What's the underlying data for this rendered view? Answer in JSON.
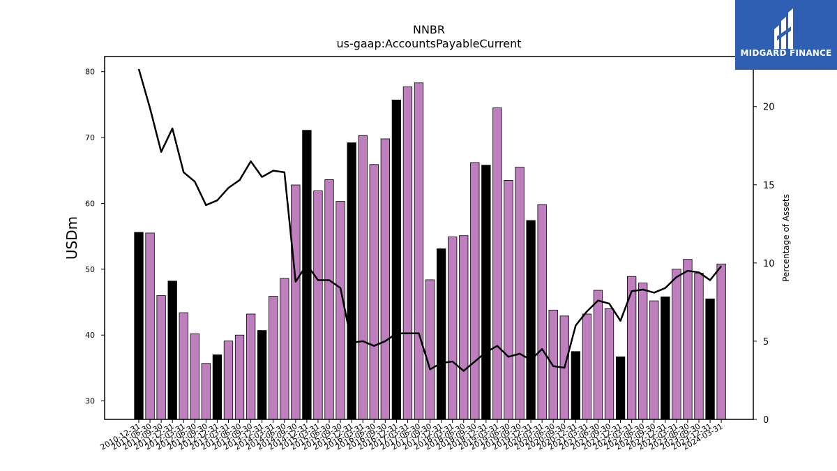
{
  "chart_data": {
    "type": "bar",
    "title": "NNBR",
    "subtitle": "us-gaap:AccountsPayableCurrent",
    "ylabel": "USDm",
    "y2label": "Percentage of Assets",
    "ylim": [
      27.2,
      82.3
    ],
    "y2lim": [
      0,
      23.2
    ],
    "yticks": [
      30,
      40,
      50,
      60,
      70,
      80
    ],
    "y2ticks": [
      0,
      5,
      10,
      15,
      20
    ],
    "grid": false,
    "categories": [
      "2010-12-31",
      "2011-06-30",
      "2011-09-30",
      "2011-12-31",
      "2012-03-31",
      "2012-06-30",
      "2012-09-30",
      "2012-12-31",
      "2013-03-31",
      "2013-06-30",
      "2013-09-30",
      "2013-12-31",
      "2014-03-31",
      "2014-06-30",
      "2014-09-30",
      "2014-12-31",
      "2015-03-31",
      "2015-06-30",
      "2015-09-30",
      "2015-12-31",
      "2016-03-31",
      "2016-06-30",
      "2016-09-30",
      "2016-12-31",
      "2017-03-31",
      "2017-06-30",
      "2017-09-30",
      "2017-12-31",
      "2018-03-31",
      "2018-06-30",
      "2018-09-30",
      "2018-12-31",
      "2019-03-31",
      "2019-06-30",
      "2019-09-30",
      "2019-12-31",
      "2020-03-31",
      "2020-06-30",
      "2020-09-30",
      "2020-12-31",
      "2021-03-31",
      "2021-06-30",
      "2021-09-30",
      "2021-12-31",
      "2022-03-31",
      "2022-06-30",
      "2022-09-30",
      "2022-12-31",
      "2023-03-31",
      "2023-06-30",
      "2023-09-30",
      "2023-12-31",
      "2024-03-31"
    ],
    "series": [
      {
        "kind": "bar",
        "values": [
          55.6,
          55.5,
          46.0,
          48.2,
          43.4,
          40.2,
          35.7,
          37.0,
          39.1,
          40.0,
          43.2,
          40.7,
          45.9,
          48.6,
          62.8,
          71.1,
          61.9,
          63.6,
          60.3,
          69.2,
          70.3,
          65.9,
          69.8,
          75.7,
          77.7,
          78.3,
          48.4,
          53.1,
          54.9,
          55.1,
          66.2,
          65.8,
          74.5,
          63.5,
          65.5,
          57.4,
          59.8,
          43.8,
          42.9,
          37.5,
          43.2,
          46.8,
          44.0,
          36.7,
          48.9,
          47.9,
          45.2,
          45.8,
          50.0,
          51.5,
          49.4,
          45.5,
          50.8
        ],
        "year_end_highlight": [
          true,
          false,
          false,
          true,
          false,
          false,
          false,
          true,
          false,
          false,
          false,
          true,
          false,
          false,
          false,
          true,
          false,
          false,
          false,
          true,
          false,
          false,
          false,
          true,
          false,
          false,
          false,
          true,
          false,
          false,
          false,
          true,
          false,
          false,
          false,
          true,
          false,
          false,
          false,
          true,
          false,
          false,
          false,
          true,
          false,
          false,
          false,
          true,
          false,
          false,
          false,
          true,
          false
        ]
      },
      {
        "kind": "line",
        "axis": "right",
        "values": [
          22.4,
          19.9,
          17.1,
          18.6,
          15.8,
          15.2,
          13.7,
          14.0,
          14.8,
          15.3,
          16.5,
          15.5,
          15.9,
          15.8,
          8.8,
          9.9,
          8.9,
          8.9,
          8.4,
          4.9,
          5.0,
          4.7,
          5.0,
          5.5,
          5.5,
          5.5,
          3.2,
          3.6,
          3.7,
          3.1,
          3.7,
          4.3,
          4.7,
          4.0,
          4.2,
          3.8,
          4.5,
          3.4,
          3.3,
          6.0,
          6.9,
          7.6,
          7.4,
          6.3,
          8.2,
          8.3,
          8.1,
          8.4,
          9.1,
          9.5,
          9.4,
          8.9,
          9.8
        ]
      }
    ],
    "colors": {
      "bar_year_end": "#000000",
      "bar_other": "#bf7fbf",
      "line": "#000000"
    }
  },
  "logo": {
    "text": "MIDGARD FINANCE",
    "bg": "#2f5fb3"
  }
}
